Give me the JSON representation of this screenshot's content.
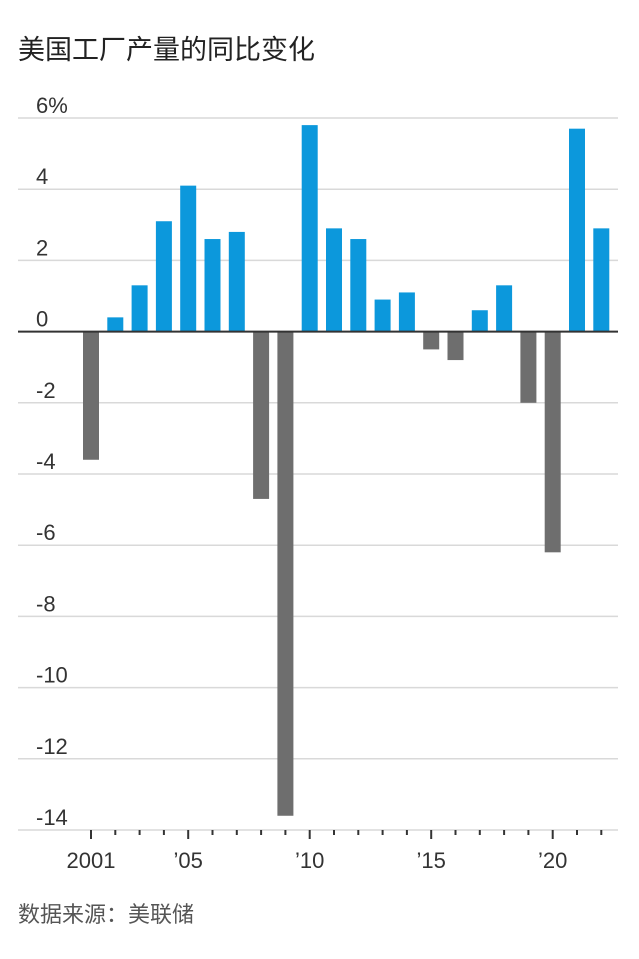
{
  "header": {
    "title": "美国工厂产量的同比变化"
  },
  "footer": {
    "source": "数据来源：美联储"
  },
  "chart_data": {
    "type": "bar",
    "title": "美国工厂产量的同比变化",
    "xlabel": "",
    "ylabel": "",
    "ylim": [
      -14,
      6
    ],
    "grid": true,
    "legend": "none",
    "categories": [
      2001,
      2002,
      2003,
      2004,
      2005,
      2006,
      2007,
      2008,
      2009,
      2010,
      2011,
      2012,
      2013,
      2014,
      2015,
      2016,
      2017,
      2018,
      2019,
      2020,
      2021,
      2022
    ],
    "values": [
      -3.6,
      0.4,
      1.3,
      3.1,
      4.1,
      2.6,
      2.8,
      -4.7,
      -13.6,
      5.8,
      2.9,
      2.6,
      0.9,
      1.1,
      -0.5,
      -0.8,
      0.6,
      1.3,
      -2.0,
      -6.2,
      5.7,
      2.9
    ],
    "y_ticks": [
      {
        "value": 6,
        "label": "6%"
      },
      {
        "value": 4,
        "label": "4"
      },
      {
        "value": 2,
        "label": "2"
      },
      {
        "value": 0,
        "label": "0"
      },
      {
        "value": -2,
        "label": "-2"
      },
      {
        "value": -4,
        "label": "-4"
      },
      {
        "value": -6,
        "label": "-6"
      },
      {
        "value": -8,
        "label": "-8"
      },
      {
        "value": -10,
        "label": "-10"
      },
      {
        "value": -12,
        "label": "-12"
      },
      {
        "value": -14,
        "label": "-14"
      }
    ],
    "x_tick_labels": [
      {
        "year": 2001,
        "label": "2001"
      },
      {
        "year": 2005,
        "label": "’05"
      },
      {
        "year": 2010,
        "label": "’10"
      },
      {
        "year": 2015,
        "label": "’15"
      },
      {
        "year": 2020,
        "label": "’20"
      }
    ],
    "colors": {
      "positive": "#0c98dc",
      "negative": "#6e6e6e",
      "grid": "#d9d9d9",
      "axis": "#333333"
    }
  }
}
